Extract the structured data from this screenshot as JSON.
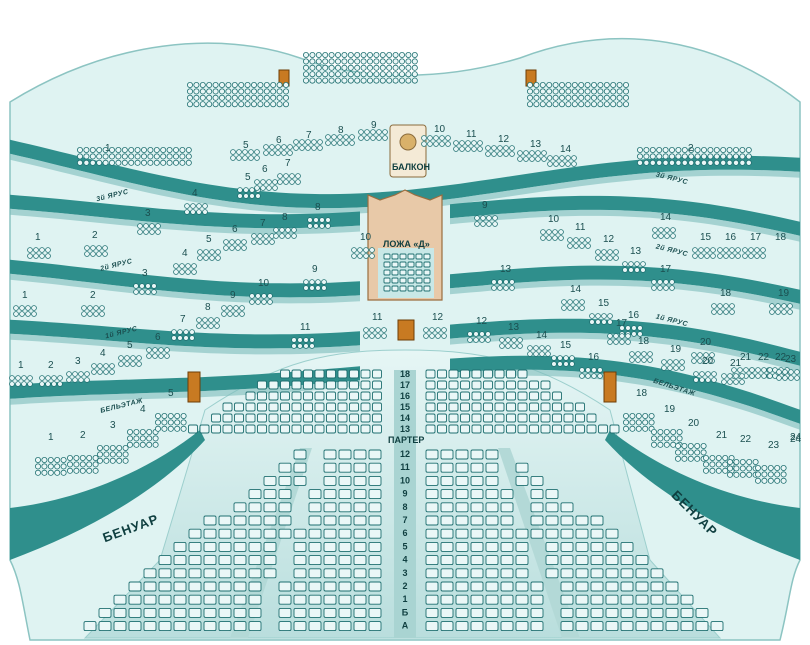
{
  "hall": {
    "parter_label": "ПАРТЕР",
    "benuar_label": "БЕНУАР",
    "beletazh_label": "БЕЛЬЭТАЖ",
    "balcony_label": "БАЛКОН",
    "loge_d_label": "ЛОЖА «Д»",
    "tier1_label": "1й ЯРУС",
    "tier2_label": "2й ЯРУС",
    "tier3_label": "3й ЯРУС"
  },
  "parter_rows": [
    "18",
    "17",
    "16",
    "15",
    "14",
    "13",
    "12",
    "11",
    "10",
    "9",
    "8",
    "7",
    "6",
    "5",
    "4",
    "3",
    "2",
    "1",
    "Б",
    "А"
  ],
  "balcony_boxes": {
    "left": [
      "5",
      "6",
      "7",
      "8",
      "9"
    ],
    "right": [
      "10",
      "11",
      "12",
      "13",
      "14"
    ],
    "side": [
      "1",
      "2"
    ]
  },
  "tier3_boxes": {
    "left": [
      "1",
      "2",
      "3",
      "4",
      "5",
      "6",
      "7",
      "8"
    ],
    "right": [
      "9",
      "10",
      "11",
      "12",
      "13",
      "14",
      "15",
      "16",
      "17",
      "18"
    ]
  },
  "tier2_boxes": {
    "left": [
      "1",
      "2",
      "3",
      "4",
      "5",
      "6",
      "7",
      "8",
      "9",
      "10",
      "11"
    ],
    "right": [
      "12",
      "13",
      "14",
      "15",
      "16",
      "17",
      "18",
      "19",
      "20",
      "21",
      "22"
    ]
  },
  "beletazh_boxes": {
    "left": [
      "1",
      "2",
      "3",
      "4",
      "5",
      "6",
      "7",
      "8",
      "9",
      "10",
      "11"
    ],
    "right": [
      "12",
      "13",
      "14",
      "15",
      "16",
      "17",
      "18",
      "19",
      "20",
      "21",
      "22",
      "23",
      "24"
    ]
  },
  "benuar_boxes": {
    "left": [
      "1",
      "2",
      "3",
      "4",
      "5"
    ],
    "right": [
      "18",
      "19",
      "20",
      "21",
      "22",
      "23",
      "24"
    ]
  },
  "colors": {
    "wall": "#2f8f8c",
    "wall_dark": "#1e6e6c",
    "floor": "#c6e7e6",
    "seat": "#eaf7f7",
    "seat_stroke": "#1f6f70",
    "door": "#c87a22",
    "loge": "#e8c9a8"
  }
}
